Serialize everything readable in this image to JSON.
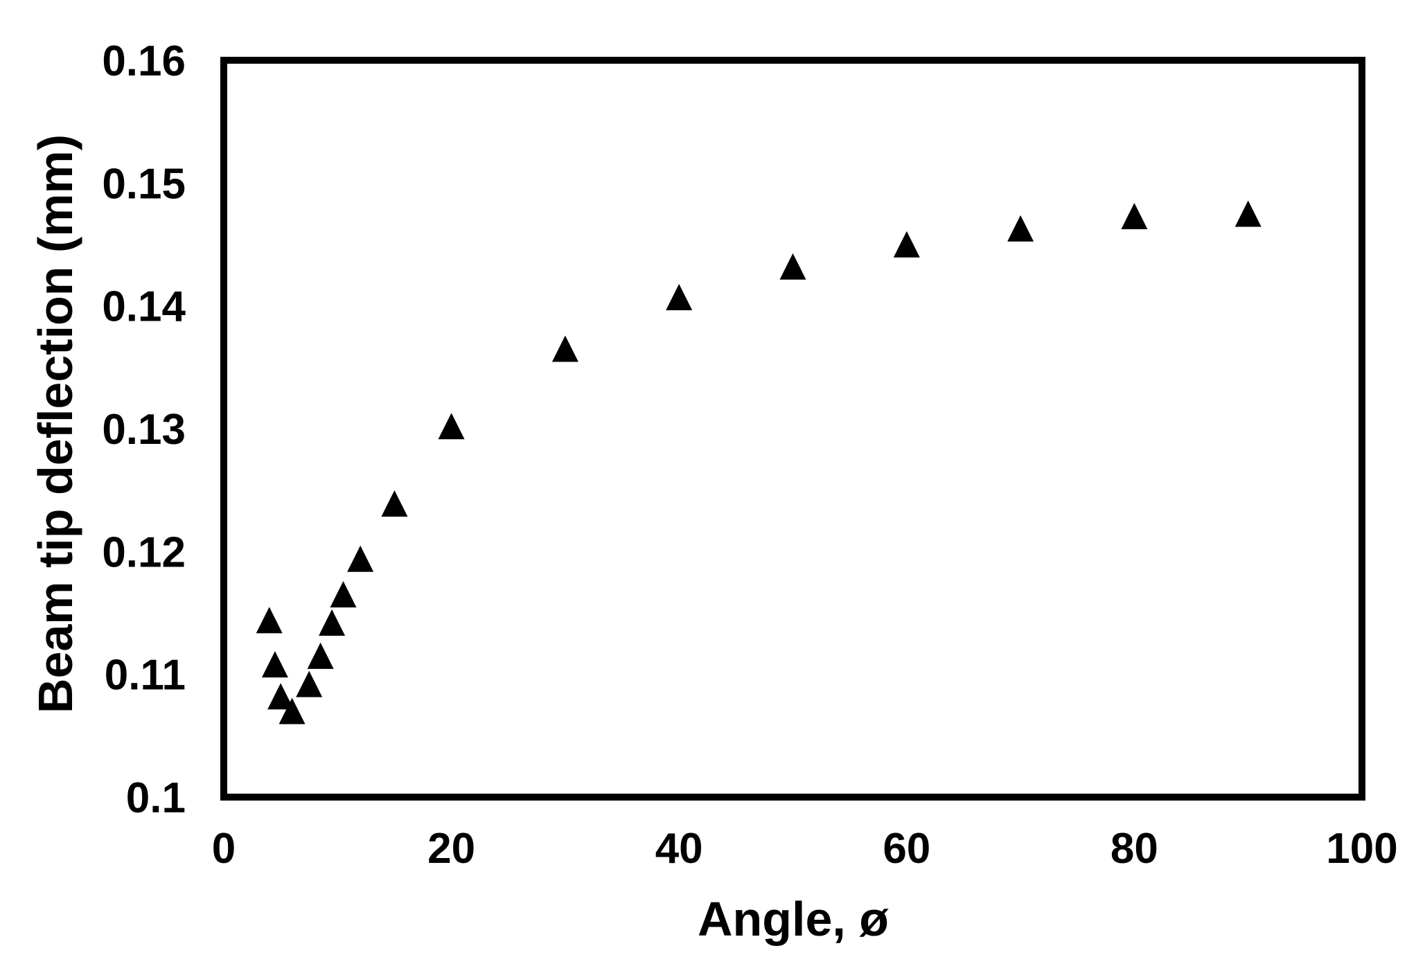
{
  "chart_data": {
    "type": "scatter",
    "title": "",
    "xlabel": "Angle, ø",
    "ylabel": "Beam tip deflection (mm)",
    "xlim": [
      0,
      100
    ],
    "ylim": [
      0.1,
      0.16
    ],
    "x_ticks": [
      0,
      20,
      40,
      60,
      80,
      100
    ],
    "y_ticks": [
      0.1,
      0.11,
      0.12,
      0.13,
      0.14,
      0.15,
      0.16
    ],
    "x_tick_labels": [
      "0",
      "20",
      "40",
      "60",
      "80",
      "100"
    ],
    "y_tick_labels": [
      "0.1",
      "0.11",
      "0.12",
      "0.13",
      "0.14",
      "0.15",
      "0.16"
    ],
    "grid": false,
    "legend": "none",
    "marker": "filled-triangle",
    "marker_color": "#000000",
    "series": [
      {
        "x": [
          4,
          4.5,
          5,
          6,
          7.5,
          8.5,
          9.5,
          10.5,
          12,
          15,
          20,
          30,
          40,
          50,
          60,
          70,
          80,
          90
        ],
        "y": [
          0.1143,
          0.1107,
          0.1081,
          0.1069,
          0.1091,
          0.1114,
          0.1141,
          0.1164,
          0.1193,
          0.1238,
          0.1301,
          0.1364,
          0.1406,
          0.1431,
          0.1449,
          0.1462,
          0.1472,
          0.1474
        ]
      }
    ]
  }
}
